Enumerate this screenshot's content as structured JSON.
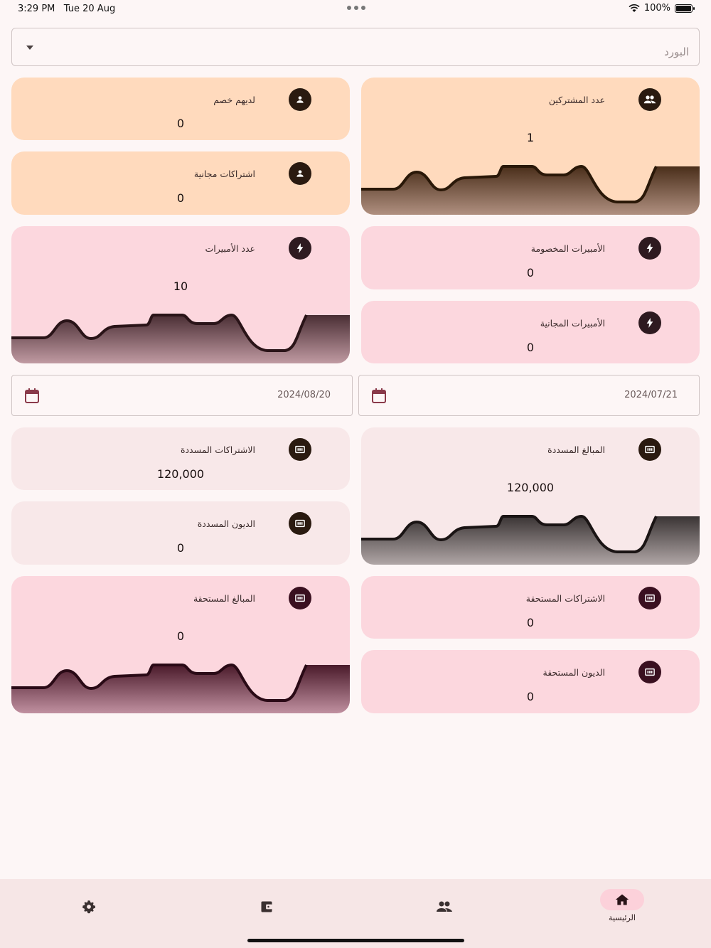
{
  "status_bar": {
    "time": "3:29 PM",
    "date": "Tue 20 Aug",
    "battery": "100%"
  },
  "generator_select": {
    "placeholder": "البورد"
  },
  "cards": {
    "discounted": {
      "title": "لديهم خصم",
      "value": "0",
      "icon": "person-icon"
    },
    "subscribers": {
      "title": "عدد المشتركين",
      "value": "1",
      "icon": "group-icon"
    },
    "free_subs": {
      "title": "اشتراكات مجانية",
      "value": "0",
      "icon": "person-icon"
    },
    "amperes": {
      "title": "عدد الأمبيرات",
      "value": "10",
      "icon": "bolt-icon"
    },
    "discounted_amperes": {
      "title": "الأمبيرات المخصومة",
      "value": "0",
      "icon": "bolt-icon"
    },
    "free_amperes": {
      "title": "الأمبيرات المجانية",
      "value": "0",
      "icon": "bolt-icon"
    },
    "paid_subs": {
      "title": "الاشتراكات المسددة",
      "value": "120,000",
      "icon": "money-icon"
    },
    "paid_amounts": {
      "title": "المبالغ المسددة",
      "value": "120,000",
      "icon": "money-icon"
    },
    "paid_debts": {
      "title": "الديون المسددة",
      "value": "0",
      "icon": "money-icon"
    },
    "due_amounts": {
      "title": "المبالغ المستحقة",
      "value": "0",
      "icon": "money-icon"
    },
    "due_subs": {
      "title": "الاشتراكات المستحقة",
      "value": "0",
      "icon": "money-icon"
    },
    "due_debts": {
      "title": "الديون المستحقة",
      "value": "0",
      "icon": "money-icon"
    }
  },
  "date_range": {
    "to": "2024/08/20",
    "from": "2024/07/21"
  },
  "colors": {
    "accent": "#fcd1da",
    "peach": "#ffdabd",
    "pink": "#fcd7de",
    "light": "#f8e8e9"
  },
  "nav": {
    "items": [
      {
        "icon": "gear-icon",
        "label": ""
      },
      {
        "icon": "wallet-icon",
        "label": ""
      },
      {
        "icon": "group-icon",
        "label": ""
      },
      {
        "icon": "home-icon",
        "label": "الرئيسية",
        "active": true
      }
    ]
  }
}
